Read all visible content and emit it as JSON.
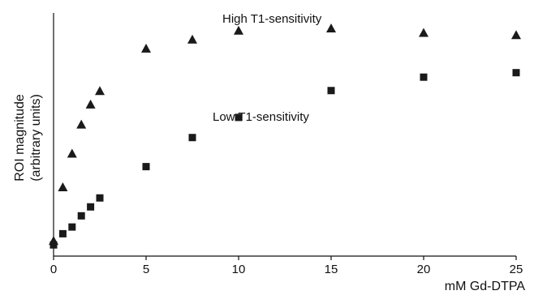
{
  "chart_data": {
    "type": "scatter",
    "xlabel": "mM Gd-DTPA",
    "ylabel": [
      "ROI magnitude",
      "(arbitrary units)"
    ],
    "xlim": [
      0,
      25
    ],
    "ylim": [
      0,
      1
    ],
    "xticks": [
      0,
      5,
      10,
      15,
      20,
      25
    ],
    "grid": false,
    "series": [
      {
        "name": "High T1-sensitivity",
        "marker": "triangle",
        "x": [
          0,
          0.5,
          1,
          1.5,
          2,
          2.5,
          5,
          7.5,
          10,
          15,
          20,
          25
        ],
        "y": [
          0.07,
          0.31,
          0.46,
          0.59,
          0.68,
          0.74,
          0.93,
          0.97,
          1.01,
          1.02,
          1.0,
          0.99
        ]
      },
      {
        "name": "Low T1-sensitivity",
        "marker": "square",
        "x": [
          0,
          0.5,
          1,
          1.5,
          2,
          2.5,
          5,
          7.5,
          10,
          15,
          20,
          25
        ],
        "y": [
          0.05,
          0.1,
          0.13,
          0.18,
          0.22,
          0.26,
          0.4,
          0.53,
          0.62,
          0.74,
          0.8,
          0.82
        ]
      }
    ],
    "annotations": [
      "High T1-sensitivity",
      "Low T1-sensitivity"
    ],
    "colors": {
      "marker": "#1a1a1a",
      "axis": "#111111"
    }
  }
}
